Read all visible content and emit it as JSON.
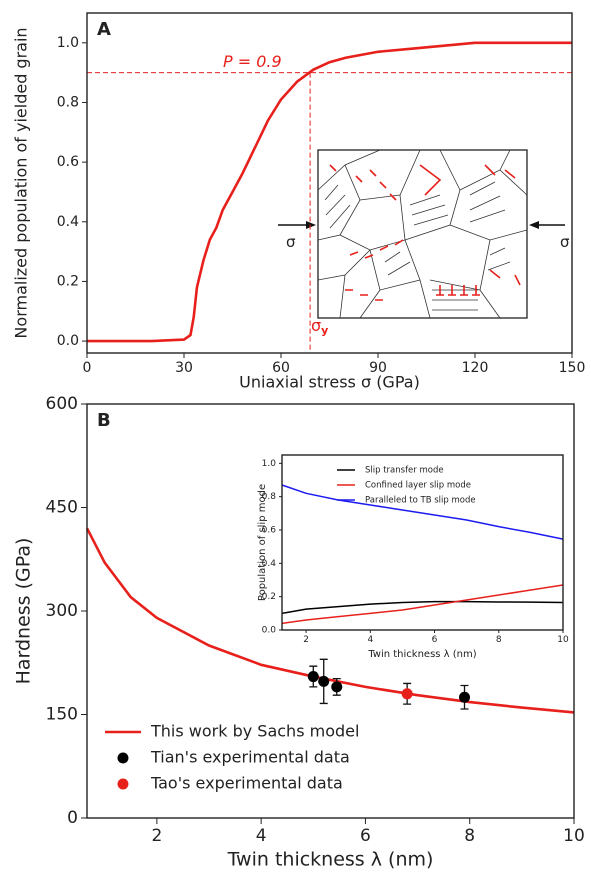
{
  "chart_data": [
    {
      "type": "line",
      "label": "A",
      "xlabel": "Uniaxial stress σ (GPa)",
      "ylabel": "Normalized population of yielded grain",
      "xlim": [
        0,
        150
      ],
      "xticks": [
        0,
        30,
        60,
        90,
        120,
        150
      ],
      "ylim": [
        -0.04,
        1.1
      ],
      "yticks": [
        {
          "value": 0,
          "label": "0.0"
        },
        0.2,
        0.4,
        0.6,
        0.8,
        {
          "value": 1,
          "label": "1.0"
        }
      ],
      "series": [
        {
          "color": "#e8201c",
          "x": [
            0,
            20,
            30,
            32,
            33,
            34,
            36,
            38,
            40,
            42,
            45,
            48,
            52,
            56,
            60,
            65,
            70,
            75,
            80,
            90,
            100,
            110,
            120,
            150
          ],
          "values": [
            0,
            0,
            0.005,
            0.02,
            0.08,
            0.18,
            0.27,
            0.34,
            0.38,
            0.44,
            0.5,
            0.56,
            0.65,
            0.74,
            0.81,
            0.87,
            0.91,
            0.935,
            0.95,
            0.97,
            0.98,
            0.99,
            1,
            1
          ]
        }
      ],
      "hline": 0.9,
      "vline": 69,
      "annotations": [
        {
          "text": "P = 0.9"
        },
        {
          "text": "σ",
          "sub": "y"
        },
        {
          "text": "σ"
        },
        {
          "text": "σ"
        }
      ]
    },
    {
      "type": "line",
      "label": "B",
      "xlabel": "Twin thickness λ (nm)",
      "ylabel": "Hardness (GPa)",
      "xlim": [
        0.66,
        10
      ],
      "xticks": [
        2,
        4,
        6,
        8,
        10
      ],
      "ylim": [
        0,
        600
      ],
      "yticks": [
        0,
        150,
        300,
        450,
        600
      ],
      "legend": "lower left",
      "series": [
        {
          "name": "This work by Sachs model",
          "type": "line",
          "color": "#e8201c",
          "x": [
            0.66,
            1,
            1.5,
            2,
            3,
            4,
            5,
            6,
            7,
            8,
            9,
            10
          ],
          "values": [
            420,
            370,
            320,
            290,
            250,
            222,
            205,
            190,
            178,
            168,
            160,
            153
          ]
        },
        {
          "name": "Tian's experimental data",
          "type": "scatter",
          "color": "#000000",
          "x": [
            5,
            5.2,
            5.45,
            7.9
          ],
          "values": [
            205,
            198,
            190,
            175
          ],
          "errors": [
            15,
            32,
            12,
            17
          ]
        },
        {
          "name": "Tao's experimental data",
          "type": "scatter",
          "color": "#e8201c",
          "x": [
            6.8
          ],
          "values": [
            180
          ],
          "errors": [
            15
          ]
        }
      ]
    },
    {
      "type": "line",
      "xlabel": "Twin thickness λ (nm)",
      "ylabel": "Population of  slip mode",
      "xlim": [
        1.25,
        10
      ],
      "xticks": [
        2,
        4,
        6,
        8,
        10
      ],
      "ylim": [
        0,
        1.05
      ],
      "yticks": [
        {
          "value": 0,
          "label": "0.0"
        },
        0.2,
        0.4,
        0.6,
        0.8,
        {
          "value": 1,
          "label": "1.0"
        }
      ],
      "legend": "upper left",
      "series": [
        {
          "name": "Slip transfer mode",
          "color": "#000000",
          "x": [
            1.25,
            2,
            3,
            4,
            5,
            6,
            7,
            8,
            9,
            10
          ],
          "values": [
            0.1,
            0.125,
            0.14,
            0.155,
            0.165,
            0.17,
            0.17,
            0.168,
            0.167,
            0.165
          ]
        },
        {
          "name": "Confined layer slip mode",
          "color": "#e8201c",
          "x": [
            1.25,
            2,
            3,
            4,
            5,
            6,
            7,
            8,
            9,
            10
          ],
          "values": [
            0.04,
            0.06,
            0.08,
            0.1,
            0.12,
            0.15,
            0.18,
            0.21,
            0.24,
            0.27
          ]
        },
        {
          "name": "Paralleled to TB slip mode",
          "color": "#1c1cf0",
          "x": [
            1.25,
            2,
            3,
            4,
            5,
            6,
            7,
            8,
            9,
            10
          ],
          "values": [
            0.87,
            0.82,
            0.78,
            0.75,
            0.72,
            0.69,
            0.66,
            0.62,
            0.585,
            0.545
          ]
        }
      ]
    }
  ]
}
